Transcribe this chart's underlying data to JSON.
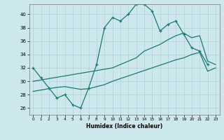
{
  "title": "",
  "xlabel": "Humidex (Indice chaleur)",
  "background_color": "#cde8ec",
  "grid_color": "#b0d0d8",
  "line_color": "#1a7a6e",
  "xlim": [
    -0.5,
    23.5
  ],
  "ylim": [
    25.0,
    41.5
  ],
  "yticks": [
    26,
    28,
    30,
    32,
    34,
    36,
    38,
    40
  ],
  "xticks": [
    0,
    1,
    2,
    3,
    4,
    5,
    6,
    7,
    8,
    9,
    10,
    11,
    12,
    13,
    14,
    15,
    16,
    17,
    18,
    19,
    20,
    21,
    22,
    23
  ],
  "line1_x": [
    0,
    1,
    2,
    3,
    4,
    5,
    6,
    7,
    8,
    9,
    10,
    11,
    12,
    13,
    14,
    15,
    16,
    17,
    18,
    19,
    20,
    21,
    22,
    23
  ],
  "line1_y": [
    32,
    30.5,
    29,
    27.5,
    28,
    26.5,
    26,
    29,
    32.5,
    38,
    39.5,
    39,
    40,
    41.5,
    41.5,
    40.5,
    37.5,
    38.5,
    39,
    37,
    35,
    34.5,
    32.5,
    null
  ],
  "line2_x": [
    0,
    1,
    2,
    3,
    4,
    5,
    6,
    7,
    8,
    9,
    10,
    11,
    12,
    13,
    14,
    15,
    16,
    17,
    18,
    19,
    20,
    21,
    22,
    23
  ],
  "line2_y": [
    30.0,
    30.2,
    30.4,
    30.6,
    30.8,
    31.0,
    31.2,
    31.4,
    31.6,
    31.8,
    32.0,
    32.5,
    33.0,
    33.5,
    34.5,
    35.0,
    35.5,
    36.2,
    36.8,
    37.2,
    36.5,
    36.8,
    33.0,
    32.5
  ],
  "line3_x": [
    0,
    1,
    2,
    3,
    4,
    5,
    6,
    7,
    8,
    9,
    10,
    11,
    12,
    13,
    14,
    15,
    16,
    17,
    18,
    19,
    20,
    21,
    22,
    23
  ],
  "line3_y": [
    28.5,
    28.7,
    28.9,
    29.1,
    29.2,
    29.0,
    28.8,
    28.9,
    29.2,
    29.5,
    30.0,
    30.4,
    30.8,
    31.2,
    31.6,
    32.0,
    32.4,
    32.8,
    33.2,
    33.5,
    34.0,
    34.3,
    31.5,
    32.0
  ]
}
